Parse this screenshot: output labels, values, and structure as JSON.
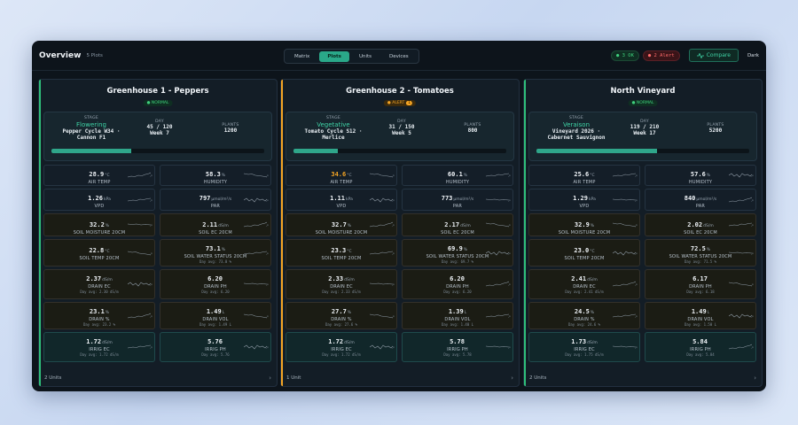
{
  "header": {
    "title": "Overview",
    "subtitle": "5 Plots",
    "tabs": [
      "Matrix",
      "Plots",
      "Units",
      "Devices"
    ],
    "active_tab": "Plots",
    "ok_badge": "3 OK",
    "alert_badge": "2 Alert",
    "compare_label": "Compare",
    "theme_label": "Dark"
  },
  "colors": {
    "accent": "#2aa889",
    "ok": "#3fd07d",
    "alert": "#f5a524",
    "danger": "#ff6b6b"
  },
  "plots": [
    {
      "name": "Greenhouse 1 - Peppers",
      "status": "NORMAL",
      "alert_count": "",
      "stage_label": "STAGE",
      "stage": "Flowering",
      "stage_detail_1": "Pepper Cycle W34 ·",
      "stage_detail_2": "Cannon F1",
      "day_label": "DAY",
      "day": "45 / 120",
      "week": "Week 7",
      "plants_label": "PLANTS",
      "plants": "1200",
      "progress_fraction": 0.375,
      "footer": "2 Units",
      "metrics": [
        {
          "value": "28.9",
          "unit": "°C",
          "label": "AIR TEMP",
          "avg": ""
        },
        {
          "value": "58.3",
          "unit": "%",
          "label": "HUMIDITY",
          "avg": ""
        },
        {
          "value": "1.26",
          "unit": "kPa",
          "label": "VPD",
          "avg": ""
        },
        {
          "value": "797",
          "unit": "μmol/m²/s",
          "label": "PAR",
          "avg": ""
        },
        {
          "value": "32.2",
          "unit": "%",
          "label": "SOIL MOISTURE 20CM",
          "avg": ""
        },
        {
          "value": "2.11",
          "unit": "dS/m",
          "label": "SOIL EC 20CM",
          "avg": ""
        },
        {
          "value": "22.8",
          "unit": "°C",
          "label": "SOIL TEMP 20CM",
          "avg": ""
        },
        {
          "value": "73.1",
          "unit": "%",
          "label": "SOIL WATER STATUS 20CM",
          "avg": "Day avg: 73.0 %"
        },
        {
          "value": "2.37",
          "unit": "dS/m",
          "label": "DRAIN EC",
          "avg": "Day avg: 2.30 dS/m"
        },
        {
          "value": "6.20",
          "unit": "",
          "label": "DRAIN PH",
          "avg": "Day avg: 6.20"
        },
        {
          "value": "23.1",
          "unit": "%",
          "label": "DRAIN %",
          "avg": "Day avg: 23.2 %"
        },
        {
          "value": "1.49",
          "unit": "L",
          "label": "DRAIN VOL",
          "avg": "Day avg: 1.49 L"
        },
        {
          "value": "1.72",
          "unit": "dS/m",
          "label": "IRRIG EC",
          "avg": "Day avg: 1.72 dS/m"
        },
        {
          "value": "5.76",
          "unit": "",
          "label": "IRRIG PH",
          "avg": "Day avg: 5.76"
        }
      ]
    },
    {
      "name": "Greenhouse 2 - Tomatoes",
      "status": "ALERT",
      "alert_count": "1",
      "stage_label": "STAGE",
      "stage": "Vegetative",
      "stage_detail_1": "Tomato Cycle S12 ·",
      "stage_detail_2": "Merlice",
      "day_label": "DAY",
      "day": "31 / 150",
      "week": "Week 5",
      "plants_label": "PLANTS",
      "plants": "800",
      "progress_fraction": 0.207,
      "footer": "1 Unit",
      "metrics": [
        {
          "value": "34.6",
          "unit": "°C",
          "label": "AIR TEMP",
          "avg": ""
        },
        {
          "value": "60.1",
          "unit": "%",
          "label": "HUMIDITY",
          "avg": ""
        },
        {
          "value": "1.11",
          "unit": "kPa",
          "label": "VPD",
          "avg": ""
        },
        {
          "value": "773",
          "unit": "μmol/m²/s",
          "label": "PAR",
          "avg": ""
        },
        {
          "value": "32.7",
          "unit": "%",
          "label": "SOIL MOISTURE 20CM",
          "avg": ""
        },
        {
          "value": "2.17",
          "unit": "dS/m",
          "label": "SOIL EC 20CM",
          "avg": ""
        },
        {
          "value": "23.3",
          "unit": "°C",
          "label": "SOIL TEMP 20CM",
          "avg": ""
        },
        {
          "value": "69.9",
          "unit": "%",
          "label": "SOIL WATER STATUS 20CM",
          "avg": "Day avg: 69.7 %"
        },
        {
          "value": "2.33",
          "unit": "dS/m",
          "label": "DRAIN EC",
          "avg": "Day avg: 2.33 dS/m"
        },
        {
          "value": "6.20",
          "unit": "",
          "label": "DRAIN PH",
          "avg": "Day avg: 6.20"
        },
        {
          "value": "27.7",
          "unit": "%",
          "label": "DRAIN %",
          "avg": "Day avg: 27.6 %"
        },
        {
          "value": "1.39",
          "unit": "L",
          "label": "DRAIN VOL",
          "avg": "Day avg: 1.40 L"
        },
        {
          "value": "1.72",
          "unit": "dS/m",
          "label": "IRRIG EC",
          "avg": "Day avg: 1.72 dS/m"
        },
        {
          "value": "5.78",
          "unit": "",
          "label": "IRRIG PH",
          "avg": "Day avg: 5.78"
        }
      ]
    },
    {
      "name": "North Vineyard",
      "status": "NORMAL",
      "alert_count": "",
      "stage_label": "STAGE",
      "stage": "Veraison",
      "stage_detail_1": "Vineyard 2026 ·",
      "stage_detail_2": "Cabernet Sauvignon",
      "day_label": "DAY",
      "day": "119 / 210",
      "week": "Week 17",
      "plants_label": "PLANTS",
      "plants": "5200",
      "progress_fraction": 0.567,
      "footer": "2 Units",
      "metrics": [
        {
          "value": "25.6",
          "unit": "°C",
          "label": "AIR TEMP",
          "avg": ""
        },
        {
          "value": "57.6",
          "unit": "%",
          "label": "HUMIDITY",
          "avg": ""
        },
        {
          "value": "1.29",
          "unit": "kPa",
          "label": "VPD",
          "avg": ""
        },
        {
          "value": "840",
          "unit": "μmol/m²/s",
          "label": "PAR",
          "avg": ""
        },
        {
          "value": "32.9",
          "unit": "%",
          "label": "SOIL MOISTURE 20CM",
          "avg": ""
        },
        {
          "value": "2.02",
          "unit": "dS/m",
          "label": "SOIL EC 20CM",
          "avg": ""
        },
        {
          "value": "23.0",
          "unit": "°C",
          "label": "SOIL TEMP 20CM",
          "avg": ""
        },
        {
          "value": "72.5",
          "unit": "%",
          "label": "SOIL WATER STATUS 20CM",
          "avg": "Day avg: 71.5 %"
        },
        {
          "value": "2.41",
          "unit": "dS/m",
          "label": "DRAIN EC",
          "avg": "Day avg: 2.41 dS/m"
        },
        {
          "value": "6.17",
          "unit": "",
          "label": "DRAIN PH",
          "avg": "Day avg: 6.18"
        },
        {
          "value": "24.5",
          "unit": "%",
          "label": "DRAIN %",
          "avg": "Day avg: 24.6 %"
        },
        {
          "value": "1.49",
          "unit": "L",
          "label": "DRAIN VOL",
          "avg": "Day avg: 1.50 L"
        },
        {
          "value": "1.73",
          "unit": "dS/m",
          "label": "IRRIG EC",
          "avg": "Day avg: 1.75 dS/m"
        },
        {
          "value": "5.84",
          "unit": "",
          "label": "IRRIG PH",
          "avg": "Day avg: 5.84"
        }
      ]
    }
  ]
}
